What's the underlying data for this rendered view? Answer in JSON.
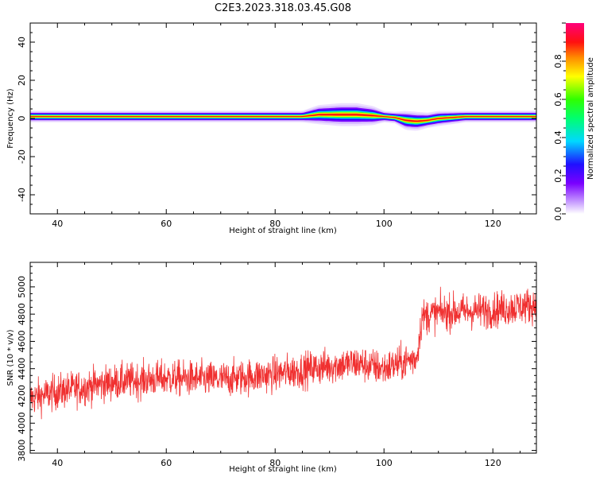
{
  "title": "C2E3.2023.318.03.45.G08",
  "chart_data": [
    {
      "type": "heatmap",
      "title": "",
      "xlabel": "Height of straight line (km)",
      "ylabel": "Frequency (Hz)",
      "xlim": [
        35,
        128
      ],
      "ylim": [
        -50,
        50
      ],
      "xticks": [
        "40",
        "60",
        "80",
        "100",
        "120"
      ],
      "xtick_values": [
        40,
        60,
        80,
        100,
        120
      ],
      "yticks": [
        "-40",
        "-20",
        "0",
        "20",
        "40"
      ],
      "ytick_values": [
        -40,
        -20,
        0,
        20,
        40
      ],
      "colorbar": {
        "label": "Normalized spectral amplitude",
        "range": [
          0,
          1
        ],
        "ticks": [
          "0.0",
          "0.2",
          "0.4",
          "0.6",
          "0.8"
        ],
        "tick_values": [
          0.0,
          0.2,
          0.4,
          0.6,
          0.8
        ],
        "colormap": "rainbow (white-violet-blue-cyan-green-yellow-orange-red-pink)"
      },
      "ridge": {
        "x": [
          35,
          40,
          50,
          60,
          70,
          80,
          85,
          88,
          92,
          95,
          98,
          100,
          102,
          104,
          106,
          108,
          110,
          115,
          120,
          128
        ],
        "center_hz": [
          1,
          1,
          1,
          1,
          1,
          1,
          1,
          2,
          2,
          2,
          1.5,
          1,
          0.5,
          -1,
          -1.5,
          -1,
          0,
          1,
          1,
          1
        ],
        "width_hz": [
          3,
          3,
          3,
          3,
          3,
          3,
          3,
          5,
          6,
          6,
          5,
          3,
          3,
          5,
          5,
          4,
          4,
          3,
          3,
          3
        ]
      }
    },
    {
      "type": "line",
      "title": "",
      "xlabel": "Height of straight line (km)",
      "ylabel": "SNR (10 * v/v)",
      "xlim": [
        35,
        128
      ],
      "ylim": [
        3780,
        5180
      ],
      "xticks": [
        "40",
        "60",
        "80",
        "100",
        "120"
      ],
      "xtick_values": [
        40,
        60,
        80,
        100,
        120
      ],
      "yticks": [
        "3800",
        "4000",
        "4200",
        "4400",
        "4600",
        "4800",
        "5000"
      ],
      "ytick_values": [
        3800,
        4000,
        4200,
        4400,
        4600,
        4800,
        5000
      ],
      "color": "#f03030",
      "series": [
        {
          "trend_x": [
            35,
            40,
            50,
            60,
            70,
            80,
            90,
            95,
            100,
            106,
            107,
            110,
            120,
            128
          ],
          "trend_y": [
            4180,
            4230,
            4300,
            4330,
            4320,
            4360,
            4420,
            4440,
            4400,
            4480,
            4780,
            4810,
            4830,
            4870
          ],
          "noise_amplitude": 120
        }
      ]
    }
  ]
}
